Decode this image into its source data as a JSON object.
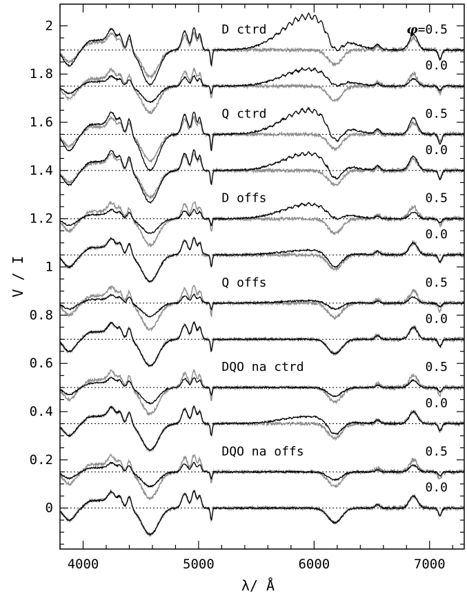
{
  "chart_data": {
    "type": "line",
    "xlabel_text": "λ/ Å",
    "ylabel": "V / I",
    "xlim": [
      3800,
      7300
    ],
    "ylim": [
      -0.17,
      2.09
    ],
    "x_ticks": [
      4000,
      5000,
      6000,
      7000
    ],
    "y_ticks": [
      0,
      0.2,
      0.4,
      0.6,
      0.8,
      1,
      1.2,
      1.4,
      1.6,
      1.8,
      2
    ],
    "y_tick_labels": [
      "0",
      "0.2",
      "0.4",
      "0.6",
      "0.8",
      "1",
      "1.2",
      "1.4",
      "1.6",
      "1.8",
      "2"
    ],
    "phase_prefix": "φ",
    "series_colors": {
      "observed": "#909090",
      "model": "#000000",
      "baseline": "#000000"
    },
    "panels": [
      {
        "label": "D ctrd",
        "phase": "=0.5",
        "offset": 1.9,
        "model_scale": 1.3,
        "emission_bump": 0.14
      },
      {
        "label": "",
        "phase": "0.0",
        "offset": 1.75,
        "model_scale": 0.6,
        "emission_bump": 0.07
      },
      {
        "label": "Q ctrd",
        "phase": "0.5",
        "offset": 1.55,
        "model_scale": 1.35,
        "emission_bump": 0.1
      },
      {
        "label": "",
        "phase": "0.0",
        "offset": 1.4,
        "model_scale": 1.2,
        "emission_bump": 0.07
      },
      {
        "label": "D offs",
        "phase": "0.5",
        "offset": 1.2,
        "model_scale": 0.55,
        "emission_bump": 0.06
      },
      {
        "label": "",
        "phase": "0.0",
        "offset": 1.05,
        "model_scale": 1.0,
        "emission_bump": 0.02
      },
      {
        "label": "Q offs",
        "phase": "0.5",
        "offset": 0.85,
        "model_scale": 0.5,
        "emission_bump": 0.01
      },
      {
        "label": "",
        "phase": "0.0",
        "offset": 0.7,
        "model_scale": 1.0,
        "emission_bump": 0.0
      },
      {
        "label": "DQO na ctrd",
        "phase": "0.5",
        "offset": 0.5,
        "model_scale": 0.6,
        "emission_bump": 0.0
      },
      {
        "label": "",
        "phase": "0.0",
        "offset": 0.35,
        "model_scale": 1.0,
        "emission_bump": 0.03
      },
      {
        "label": "DQO na offs",
        "phase": "0.5",
        "offset": 0.15,
        "model_scale": 0.55,
        "emission_bump": 0.0
      },
      {
        "label": "",
        "phase": "0.0",
        "offset": 0.0,
        "model_scale": 1.0,
        "emission_bump": 0.0
      }
    ]
  }
}
